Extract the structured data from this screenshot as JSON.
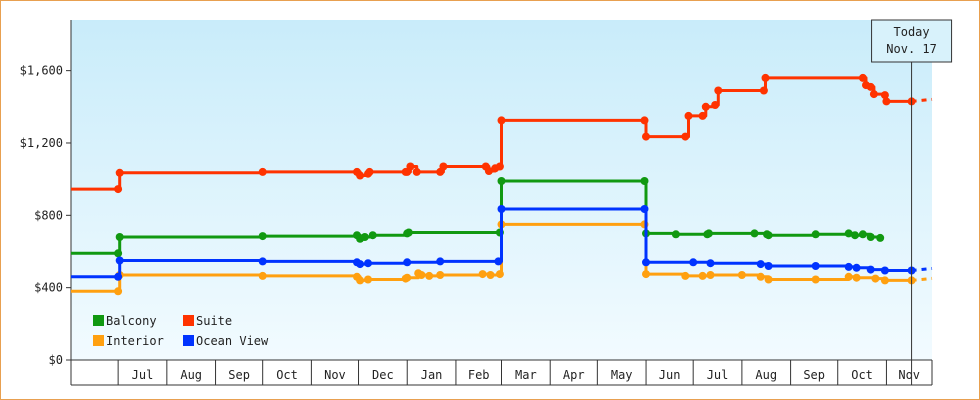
{
  "chart_data": {
    "type": "line",
    "step": true,
    "currency_prefix": "$",
    "y_ticks": [
      0,
      400,
      800,
      1200,
      1600
    ],
    "y_tick_labels": [
      "$0",
      "$400",
      "$800",
      "$1,200",
      "$1,600"
    ],
    "ylim": [
      0,
      1880
    ],
    "x_range": [
      "2023-06-01",
      "2024-11-30"
    ],
    "months": [
      {
        "label": "Jul",
        "start": "2023-07-01"
      },
      {
        "label": "Aug",
        "start": "2023-08-01"
      },
      {
        "label": "Sep",
        "start": "2023-09-01"
      },
      {
        "label": "Oct",
        "start": "2023-10-01"
      },
      {
        "label": "Nov",
        "start": "2023-11-01"
      },
      {
        "label": "Dec",
        "start": "2023-12-01"
      },
      {
        "label": "Jan",
        "start": "2024-01-01"
      },
      {
        "label": "Feb",
        "start": "2024-02-01"
      },
      {
        "label": "Mar",
        "start": "2024-03-01"
      },
      {
        "label": "Apr",
        "start": "2024-04-01"
      },
      {
        "label": "May",
        "start": "2024-05-01"
      },
      {
        "label": "Jun",
        "start": "2024-06-01"
      },
      {
        "label": "Jul",
        "start": "2024-07-01"
      },
      {
        "label": "Aug",
        "start": "2024-08-01"
      },
      {
        "label": "Sep",
        "start": "2024-09-01"
      },
      {
        "label": "Oct",
        "start": "2024-10-01"
      },
      {
        "label": "Nov",
        "start": "2024-11-01"
      }
    ],
    "today": {
      "date": "2024-11-17",
      "label_line1": "Today",
      "label_line2": "Nov. 17"
    },
    "legend": {
      "position": "bottom-left"
    },
    "series": [
      {
        "name": "Balcony",
        "color": "#119911",
        "points": [
          [
            "2023-06-01",
            590
          ],
          [
            "2023-07-01",
            590
          ],
          [
            "2023-07-02",
            680
          ],
          [
            "2023-10-01",
            685
          ],
          [
            "2023-11-30",
            690
          ],
          [
            "2023-12-02",
            670
          ],
          [
            "2023-12-05",
            680
          ],
          [
            "2023-12-10",
            690
          ],
          [
            "2024-01-01",
            700
          ],
          [
            "2024-01-02",
            705
          ],
          [
            "2024-02-29",
            705
          ],
          [
            "2024-03-01",
            990
          ],
          [
            "2024-05-31",
            990
          ],
          [
            "2024-06-01",
            700
          ],
          [
            "2024-06-20",
            695
          ],
          [
            "2024-07-10",
            695
          ],
          [
            "2024-07-11",
            700
          ],
          [
            "2024-08-09",
            700
          ],
          [
            "2024-08-17",
            695
          ],
          [
            "2024-08-18",
            690
          ],
          [
            "2024-09-17",
            695
          ],
          [
            "2024-10-08",
            700
          ],
          [
            "2024-10-12",
            690
          ],
          [
            "2024-10-17",
            695
          ],
          [
            "2024-10-22",
            680
          ],
          [
            "2024-10-28",
            675
          ]
        ]
      },
      {
        "name": "Suite",
        "color": "#ff3300",
        "points": [
          [
            "2023-06-01",
            945
          ],
          [
            "2023-07-01",
            945
          ],
          [
            "2023-07-02",
            1035
          ],
          [
            "2023-10-01",
            1040
          ],
          [
            "2023-11-30",
            1040
          ],
          [
            "2023-12-02",
            1020
          ],
          [
            "2023-12-07",
            1030
          ],
          [
            "2023-12-08",
            1040
          ],
          [
            "2023-12-31",
            1040
          ],
          [
            "2024-01-01",
            1040
          ],
          [
            "2024-01-03",
            1070
          ],
          [
            "2024-01-07",
            1040
          ],
          [
            "2024-01-22",
            1040
          ],
          [
            "2024-01-24",
            1070
          ],
          [
            "2024-02-20",
            1070
          ],
          [
            "2024-02-22",
            1045
          ],
          [
            "2024-02-26",
            1060
          ],
          [
            "2024-02-29",
            1070
          ],
          [
            "2024-03-01",
            1325
          ],
          [
            "2024-05-31",
            1325
          ],
          [
            "2024-06-01",
            1235
          ],
          [
            "2024-06-26",
            1235
          ],
          [
            "2024-06-28",
            1350
          ],
          [
            "2024-07-07",
            1350
          ],
          [
            "2024-07-09",
            1400
          ],
          [
            "2024-07-15",
            1410
          ],
          [
            "2024-07-17",
            1490
          ],
          [
            "2024-08-15",
            1490
          ],
          [
            "2024-08-16",
            1560
          ],
          [
            "2024-10-17",
            1560
          ],
          [
            "2024-10-19",
            1520
          ],
          [
            "2024-10-22",
            1510
          ],
          [
            "2024-10-24",
            1470
          ],
          [
            "2024-10-31",
            1465
          ],
          [
            "2024-11-01",
            1430
          ],
          [
            "2024-11-17",
            1430
          ]
        ]
      },
      {
        "name": "Interior",
        "color": "#ffa010",
        "points": [
          [
            "2023-06-01",
            380
          ],
          [
            "2023-07-01",
            380
          ],
          [
            "2023-07-02",
            470
          ],
          [
            "2023-10-01",
            465
          ],
          [
            "2023-11-30",
            460
          ],
          [
            "2023-12-02",
            440
          ],
          [
            "2023-12-07",
            445
          ],
          [
            "2023-12-31",
            450
          ],
          [
            "2024-01-01",
            455
          ],
          [
            "2024-01-08",
            480
          ],
          [
            "2024-01-10",
            470
          ],
          [
            "2024-01-15",
            465
          ],
          [
            "2024-01-22",
            470
          ],
          [
            "2024-02-18",
            475
          ],
          [
            "2024-02-23",
            470
          ],
          [
            "2024-02-29",
            475
          ],
          [
            "2024-03-01",
            750
          ],
          [
            "2024-05-31",
            750
          ],
          [
            "2024-06-01",
            475
          ],
          [
            "2024-06-26",
            465
          ],
          [
            "2024-07-07",
            465
          ],
          [
            "2024-07-12",
            470
          ],
          [
            "2024-08-01",
            470
          ],
          [
            "2024-08-13",
            460
          ],
          [
            "2024-08-18",
            445
          ],
          [
            "2024-09-17",
            445
          ],
          [
            "2024-10-08",
            460
          ],
          [
            "2024-10-13",
            455
          ],
          [
            "2024-10-25",
            450
          ],
          [
            "2024-10-31",
            440
          ],
          [
            "2024-11-17",
            440
          ]
        ]
      },
      {
        "name": "Ocean View",
        "color": "#0033ff",
        "points": [
          [
            "2023-06-01",
            460
          ],
          [
            "2023-07-01",
            460
          ],
          [
            "2023-07-02",
            550
          ],
          [
            "2023-10-01",
            545
          ],
          [
            "2023-11-30",
            540
          ],
          [
            "2023-12-02",
            530
          ],
          [
            "2023-12-07",
            535
          ],
          [
            "2024-01-01",
            540
          ],
          [
            "2024-01-22",
            545
          ],
          [
            "2024-02-28",
            545
          ],
          [
            "2024-03-01",
            835
          ],
          [
            "2024-05-31",
            835
          ],
          [
            "2024-06-01",
            540
          ],
          [
            "2024-07-01",
            540
          ],
          [
            "2024-07-12",
            535
          ],
          [
            "2024-08-13",
            530
          ],
          [
            "2024-08-18",
            520
          ],
          [
            "2024-09-17",
            520
          ],
          [
            "2024-10-08",
            515
          ],
          [
            "2024-10-13",
            510
          ],
          [
            "2024-10-22",
            500
          ],
          [
            "2024-10-31",
            495
          ],
          [
            "2024-11-17",
            495
          ]
        ]
      }
    ],
    "projection_end": "2024-11-30"
  }
}
